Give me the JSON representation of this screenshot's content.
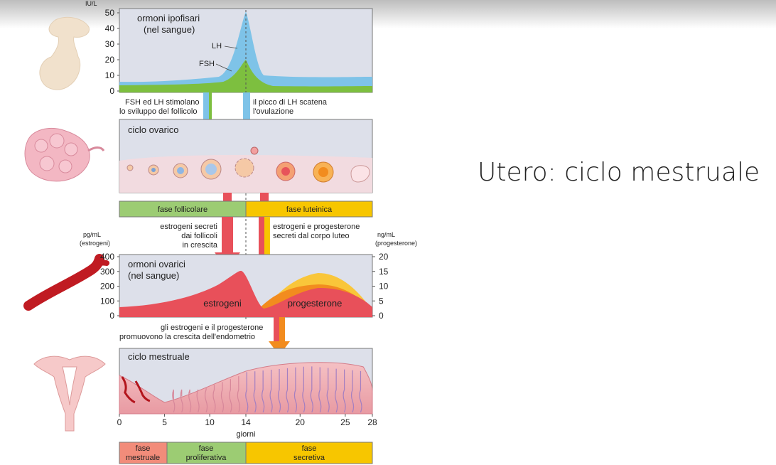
{
  "slide": {
    "title": "Utero: ciclo mestruale"
  },
  "colors": {
    "lh": "#7ec3e8",
    "fsh": "#7dbf3f",
    "estrogen": "#e8505a",
    "progesterone": "#f28c1e",
    "follicular": "#9ccc73",
    "luteal": "#f7c600",
    "menstrual": "#f28c7a",
    "panel": "#dcdfe8"
  },
  "pituitary": {
    "unit_label": "IU/L",
    "panel_title_1": "ormoni ipofisari",
    "panel_title_2": "(nel sangue)",
    "ticks": [
      "50",
      "40",
      "30",
      "20",
      "10",
      "0"
    ],
    "lh_label": "LH",
    "fsh_label": "FSH"
  },
  "notes": {
    "left_1": "FSH ed LH stimolano",
    "left_2": "lo sviluppo del follicolo",
    "right_1": "il picco di LH scatena",
    "right_2": "l'ovulazione"
  },
  "ovarian": {
    "panel_title": "ciclo ovarico"
  },
  "phases": {
    "follicular": "fase follicolare",
    "luteal": "fase luteinica"
  },
  "estrogen_note": {
    "line1": "estrogeni secreti",
    "line2": "dai follicoli",
    "line3": "in crescita"
  },
  "progesterone_note": {
    "line1": "estrogeni e progesterone",
    "line2": "secreti dal corpo luteo"
  },
  "ovarian_hormones": {
    "left_unit_1": "pg/mL",
    "left_unit_2": "(estrogeni)",
    "right_unit_1": "ng/mL",
    "right_unit_2": "(progesterone)",
    "left_ticks": [
      "400",
      "300",
      "200",
      "100",
      "0"
    ],
    "right_ticks": [
      "20",
      "15",
      "10",
      "5",
      "0"
    ],
    "panel_title_1": "ormoni ovarici",
    "panel_title_2": "(nel sangue)",
    "estrogen_label": "estrogeni",
    "progesterone_label": "progesterone"
  },
  "endometrium_note": {
    "line1": "gli estrogeni e il progesterone",
    "line2": "promuovono la crescita dell'endometrio"
  },
  "menstrual": {
    "panel_title": "ciclo mestruale",
    "day_ticks": [
      "0",
      "5",
      "10",
      "14",
      "20",
      "25",
      "28"
    ],
    "axis_label": "giorni"
  },
  "bottom_phases": {
    "menstrual_1": "fase",
    "menstrual_2": "mestruale",
    "proliferative_1": "fase",
    "proliferative_2": "proliferativa",
    "secretory_1": "fase",
    "secretory_2": "secretiva"
  }
}
